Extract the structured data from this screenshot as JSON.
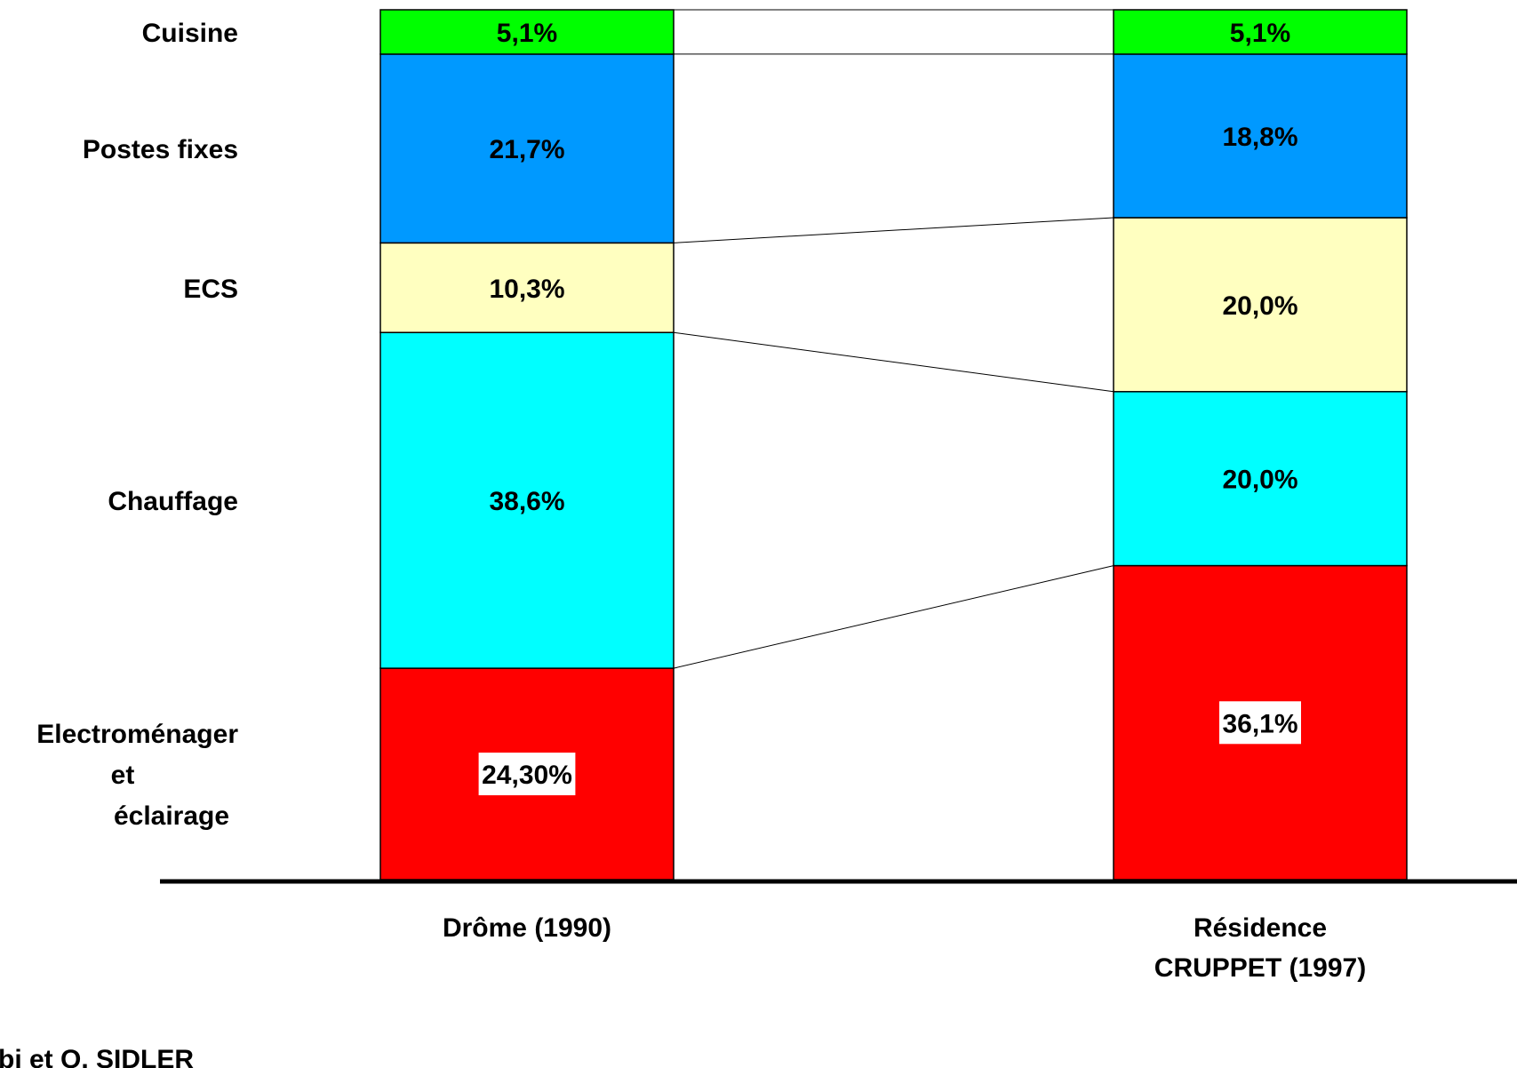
{
  "chart_data": {
    "type": "bar",
    "stacked": true,
    "percent": true,
    "categories": [
      "Drôme (1990)",
      "Résidence CRUPPET (1997)"
    ],
    "category_lines": [
      [
        "Drôme (1990)"
      ],
      [
        "Résidence",
        "CRUPPET (1997)"
      ]
    ],
    "series": [
      {
        "name": "Electroménager et éclairage",
        "label_lines": [
          "Electroménager",
          "et",
          "éclairage"
        ],
        "color": "#ff0000",
        "values": [
          24.3,
          36.1
        ],
        "value_labels": [
          "24,30%",
          "36,1%"
        ],
        "boxed_labels": true
      },
      {
        "name": "Chauffage",
        "label_lines": [
          "Chauffage"
        ],
        "color": "#00ffff",
        "values": [
          38.6,
          20.0
        ],
        "value_labels": [
          "38,6%",
          "20,0%"
        ]
      },
      {
        "name": "ECS",
        "label_lines": [
          "ECS"
        ],
        "color": "#ffffc0",
        "values": [
          10.3,
          20.0
        ],
        "value_labels": [
          "10,3%",
          "20,0%"
        ]
      },
      {
        "name": "Postes fixes",
        "label_lines": [
          "Postes fixes"
        ],
        "color": "#0099ff",
        "values": [
          21.7,
          18.8
        ],
        "value_labels": [
          "21,7%",
          "18,8%"
        ]
      },
      {
        "name": "Cuisine",
        "label_lines": [
          "Cuisine"
        ],
        "color": "#00ff00",
        "values": [
          5.1,
          5.1
        ],
        "value_labels": [
          "5,1%",
          "5,1%"
        ]
      }
    ],
    "series_lines": true,
    "legend": "left",
    "grid": false
  },
  "credit": "bi et O. SIDLER"
}
